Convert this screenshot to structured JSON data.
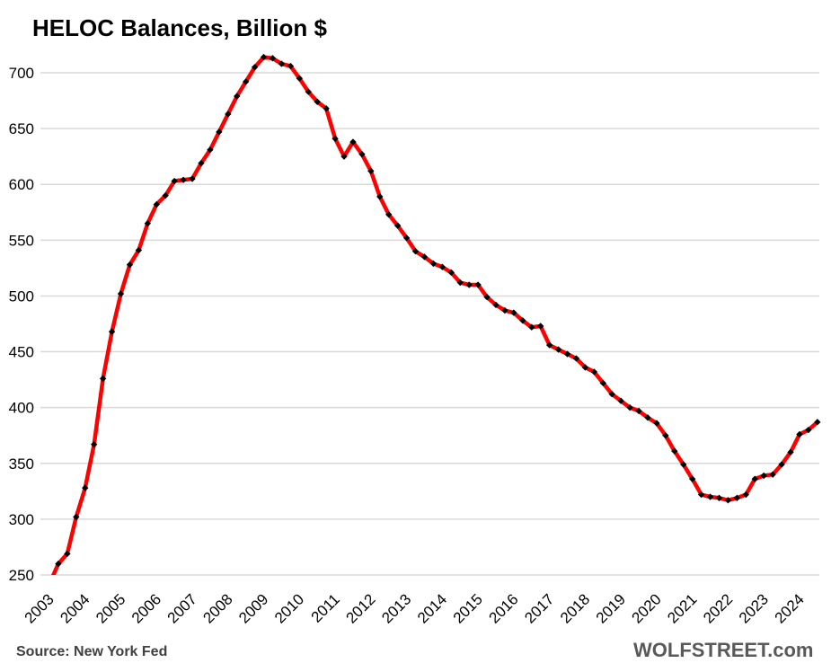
{
  "chart_data": {
    "type": "line",
    "title": "HELOC Balances, Billion $",
    "xlabel": "",
    "ylabel": "",
    "ylim": [
      250,
      700
    ],
    "yticks": [
      250,
      300,
      350,
      400,
      450,
      500,
      550,
      600,
      650,
      700
    ],
    "xtick_labels": [
      "2003",
      "2004",
      "2005",
      "2006",
      "2007",
      "2008",
      "2009",
      "2010",
      "2011",
      "2012",
      "2013",
      "2014",
      "2015",
      "2016",
      "2017",
      "2018",
      "2019",
      "2020",
      "2021",
      "2022",
      "2023",
      "2024"
    ],
    "grid": true,
    "legend": "none",
    "series": [
      {
        "name": "HELOC Balances",
        "color": "#ff0000",
        "marker_color": "#000000",
        "frequency": "quarterly, 2003 Q1 to 2024 Q3",
        "values": [
          242,
          260,
          269,
          302,
          328,
          367,
          426,
          468,
          502,
          528,
          541,
          565,
          582,
          590,
          603,
          604,
          605,
          619,
          631,
          647,
          663,
          679,
          692,
          705,
          714,
          713,
          708,
          706,
          695,
          683,
          674,
          668,
          641,
          625,
          638,
          627,
          612,
          589,
          573,
          563,
          552,
          540,
          535,
          529,
          526,
          521,
          512,
          510,
          510,
          499,
          492,
          487,
          485,
          478,
          472,
          473,
          456,
          452,
          448,
          444,
          436,
          432,
          422,
          412,
          406,
          400,
          397,
          391,
          386,
          375,
          361,
          349,
          336,
          322,
          320,
          319,
          317,
          319,
          322,
          336,
          339,
          340,
          349,
          360,
          376,
          380,
          387
        ]
      }
    ]
  },
  "footer": {
    "source": "Source: New York Fed",
    "brand": "WOLFSTREET.com"
  }
}
